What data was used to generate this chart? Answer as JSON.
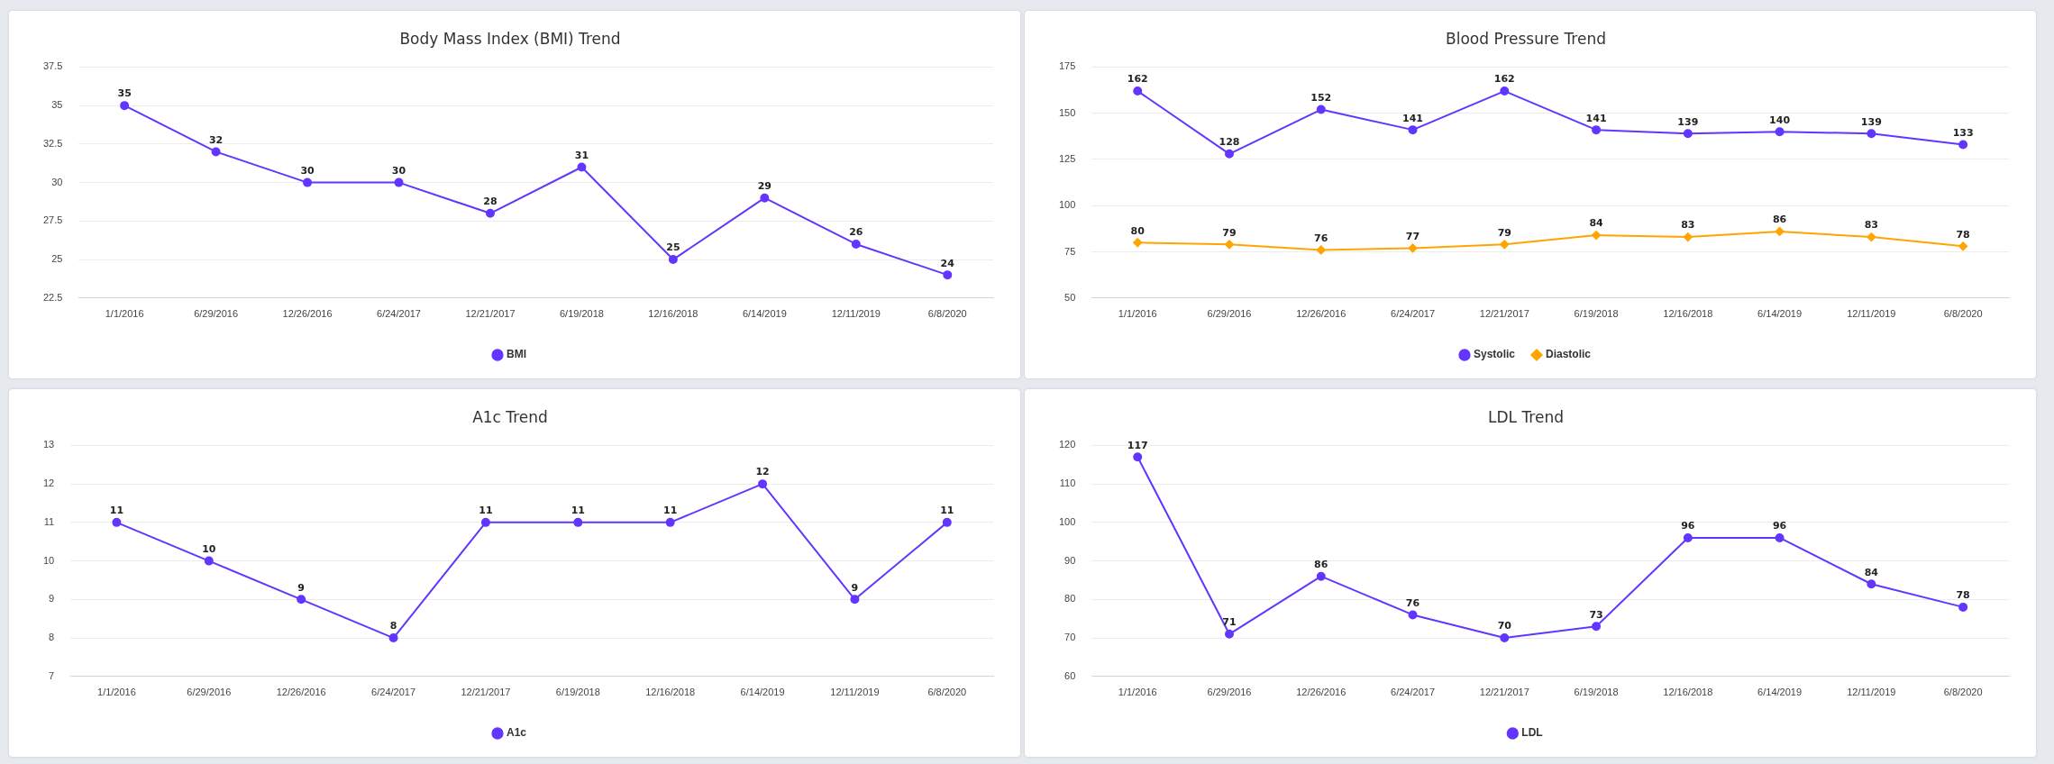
{
  "chart_data": [
    {
      "type": "line",
      "title": "Body Mass Index (BMI) Trend",
      "categories": [
        "1/1/2016",
        "6/29/2016",
        "12/26/2016",
        "6/24/2017",
        "12/21/2017",
        "6/19/2018",
        "12/16/2018",
        "6/14/2019",
        "12/11/2019",
        "6/8/2020"
      ],
      "series": [
        {
          "name": "BMI",
          "color": "#6236ff",
          "values": [
            35,
            32,
            30,
            30,
            28,
            31,
            25,
            29,
            26,
            24
          ]
        }
      ],
      "ylim": [
        22.5,
        37.5
      ],
      "yticks": [
        22.5,
        25,
        27.5,
        30,
        32.5,
        35,
        37.5
      ],
      "grid": "y",
      "legend": "bottom",
      "marker": "circle",
      "data_labels": true
    },
    {
      "type": "line",
      "title": "Blood Pressure Trend",
      "categories": [
        "1/1/2016",
        "6/29/2016",
        "12/26/2016",
        "6/24/2017",
        "12/21/2017",
        "6/19/2018",
        "12/16/2018",
        "6/14/2019",
        "12/11/2019",
        "6/8/2020"
      ],
      "series": [
        {
          "name": "Systolic",
          "color": "#6236ff",
          "marker": "circle",
          "values": [
            162,
            128,
            152,
            141,
            162,
            141,
            139,
            140,
            139,
            133
          ]
        },
        {
          "name": "Diastolic",
          "color": "#ffa500",
          "marker": "diamond",
          "values": [
            80,
            79,
            76,
            77,
            79,
            84,
            83,
            86,
            83,
            78
          ]
        }
      ],
      "ylim": [
        50,
        175
      ],
      "yticks": [
        50,
        75,
        100,
        125,
        150,
        175
      ],
      "grid": "y",
      "legend": "bottom",
      "data_labels": true
    },
    {
      "type": "line",
      "title": "A1c Trend",
      "categories": [
        "1/1/2016",
        "6/29/2016",
        "12/26/2016",
        "6/24/2017",
        "12/21/2017",
        "6/19/2018",
        "12/16/2018",
        "6/14/2019",
        "12/11/2019",
        "6/8/2020"
      ],
      "series": [
        {
          "name": "A1c",
          "color": "#6236ff",
          "values": [
            11,
            10,
            9,
            8,
            11,
            11,
            11,
            12,
            9,
            11
          ]
        }
      ],
      "ylim": [
        7,
        13
      ],
      "yticks": [
        7,
        8,
        9,
        10,
        11,
        12,
        13
      ],
      "grid": "y",
      "legend": "bottom",
      "marker": "circle",
      "data_labels": true
    },
    {
      "type": "line",
      "title": "LDL Trend",
      "categories": [
        "1/1/2016",
        "6/29/2016",
        "12/26/2016",
        "6/24/2017",
        "12/21/2017",
        "6/19/2018",
        "12/16/2018",
        "6/14/2019",
        "12/11/2019",
        "6/8/2020"
      ],
      "series": [
        {
          "name": "LDL",
          "color": "#6236ff",
          "values": [
            117,
            71,
            86,
            76,
            70,
            73,
            96,
            96,
            84,
            78
          ]
        }
      ],
      "ylim": [
        60,
        120
      ],
      "yticks": [
        60,
        70,
        80,
        90,
        100,
        110,
        120
      ],
      "grid": "y",
      "legend": "bottom",
      "marker": "circle",
      "data_labels": true
    }
  ]
}
